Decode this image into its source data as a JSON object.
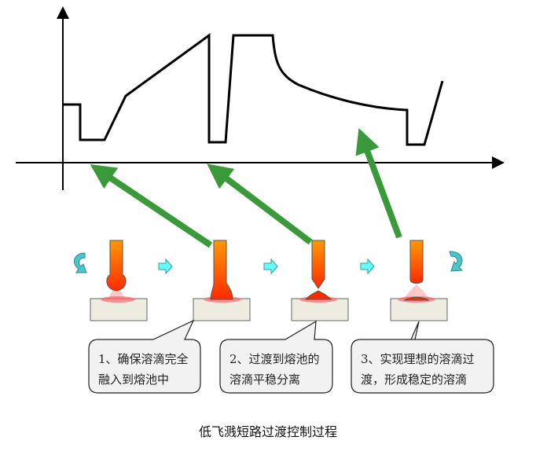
{
  "title": "低飞溅短路过渡控制过程",
  "steps": [
    {
      "line1": "1、确保溶滴完全",
      "line2": "融入到熔池中"
    },
    {
      "line1": "2、过渡到熔池的",
      "line2": "溶滴平稳分离"
    },
    {
      "line1": "3、实现理想的溶滴过",
      "line2": "渡，形成稳定的溶滴"
    }
  ],
  "colors": {
    "arrow": "#3a9a3a",
    "electrode_top": "#ff9900",
    "electrode_bottom": "#ff2a00",
    "workpiece": "#eeece0",
    "flow_arrow": "#66ffff",
    "cycle_arrow": "#4cc6cc"
  }
}
